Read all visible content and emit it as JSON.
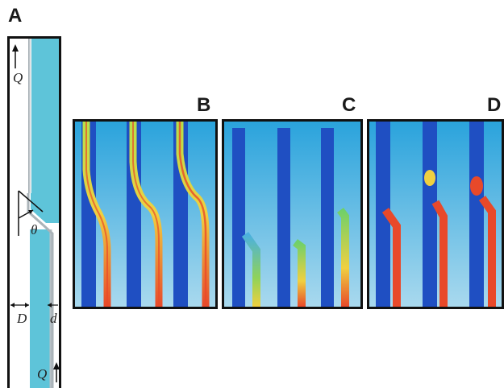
{
  "panel_labels": {
    "a": "A",
    "b": "B",
    "c": "C",
    "d": "D"
  },
  "schematic": {
    "flow_top": "Q",
    "flow_bottom": "Q",
    "angle": "θ",
    "main_width": "D",
    "branch_width": "d"
  },
  "colors": {
    "fluid": "#5ec4d9",
    "frame": "#111111",
    "background_gradient_top": "#2aa3dc",
    "background_gradient_bottom": "#a9d9ee",
    "channel": "#1f4fc2"
  }
}
